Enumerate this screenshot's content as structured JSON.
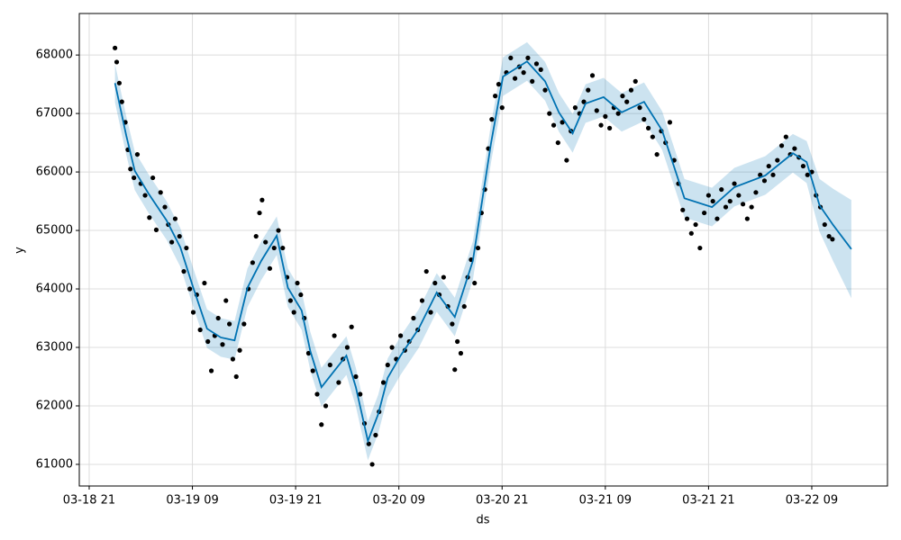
{
  "chart_data": {
    "type": "line",
    "x_label": "ds",
    "y_label": "y",
    "xlim": [
      -1.15,
      92.8
    ],
    "ylim": [
      60630,
      68710
    ],
    "grid": true,
    "xticks": [
      {
        "value": 0,
        "label": "03-18 21"
      },
      {
        "value": 12,
        "label": "03-19 09"
      },
      {
        "value": 24,
        "label": "03-19 21"
      },
      {
        "value": 36,
        "label": "03-20 09"
      },
      {
        "value": 48,
        "label": "03-20 21"
      },
      {
        "value": 60,
        "label": "03-21 09"
      },
      {
        "value": 72,
        "label": "03-21 21"
      },
      {
        "value": 84,
        "label": "03-22 09"
      }
    ],
    "yticks": [
      61000,
      62000,
      63000,
      64000,
      65000,
      66000,
      67000,
      68000
    ],
    "forecast": {
      "color": "#0072b2",
      "band_color": "#0072b2",
      "x": [
        3,
        4.3,
        5.3,
        6.9,
        9,
        10.6,
        12.1,
        13.7,
        15.3,
        16.9,
        18.4,
        20,
        21.8,
        23.1,
        24.7,
        25.7,
        27,
        29.9,
        31,
        32.4,
        33.6,
        34.7,
        36.2,
        38.3,
        40.4,
        42.5,
        44.6,
        46.7,
        48.1,
        50.9,
        53,
        54.6,
        56.2,
        57.7,
        59.8,
        61.9,
        64.5,
        66.6,
        69.2,
        72.4,
        75,
        78.6,
        81.8,
        83.4,
        84.9,
        86.5,
        88.6
      ],
      "yhat": [
        67520,
        66630,
        66020,
        65630,
        65170,
        64710,
        64020,
        63320,
        63170,
        63120,
        64020,
        64480,
        64910,
        64020,
        63630,
        62940,
        62320,
        62860,
        62320,
        61400,
        61860,
        62480,
        62860,
        63320,
        63940,
        63520,
        64480,
        66480,
        67630,
        67890,
        67550,
        67020,
        66660,
        67170,
        67280,
        67020,
        67200,
        66710,
        65550,
        65400,
        65740,
        65940,
        66320,
        66170,
        65430,
        65090,
        64680
      ],
      "lower": [
        67190,
        66300,
        65690,
        65300,
        64840,
        64380,
        63690,
        62990,
        62840,
        62790,
        63690,
        64150,
        64580,
        63690,
        63300,
        62610,
        61990,
        62530,
        61990,
        61070,
        61530,
        62150,
        62530,
        62990,
        63610,
        63190,
        64150,
        66150,
        67300,
        67560,
        67220,
        66690,
        66330,
        66840,
        66950,
        66690,
        66870,
        66380,
        65220,
        65070,
        65410,
        65610,
        65990,
        65810,
        64980,
        64470,
        63840
      ],
      "upper": [
        67850,
        66960,
        66350,
        65960,
        65500,
        65040,
        64350,
        63650,
        63500,
        63450,
        64350,
        64810,
        65240,
        64350,
        63960,
        63270,
        62650,
        63190,
        62650,
        61730,
        62190,
        62810,
        63190,
        63650,
        64270,
        63850,
        64810,
        66810,
        67960,
        68220,
        67880,
        67350,
        66990,
        67500,
        67610,
        67350,
        67530,
        67040,
        65880,
        65730,
        66070,
        66270,
        66650,
        66530,
        65880,
        65710,
        65520
      ]
    },
    "observed": {
      "color": "#000000",
      "x": [
        3,
        3.2,
        3.5,
        3.8,
        4.2,
        4.5,
        4.8,
        5.2,
        5.6,
        6,
        6.5,
        7,
        7.4,
        7.8,
        8.3,
        8.8,
        9.2,
        9.6,
        10,
        10.5,
        11,
        11.3,
        11.7,
        12.1,
        12.5,
        12.9,
        13.4,
        13.8,
        14.2,
        14.6,
        15,
        15.5,
        15.9,
        16.3,
        16.7,
        17.1,
        17.5,
        18,
        18.5,
        19,
        19.4,
        19.8,
        20.1,
        20.5,
        21,
        21.5,
        22,
        22.5,
        23,
        23.4,
        23.8,
        24.2,
        24.6,
        25,
        25.5,
        26,
        26.5,
        27,
        27.5,
        28,
        28.5,
        29,
        29.5,
        30,
        30.5,
        31,
        31.5,
        32,
        32.5,
        32.9,
        33.3,
        33.7,
        34.2,
        34.7,
        35.2,
        35.7,
        36.2,
        36.7,
        37.2,
        37.7,
        38.2,
        38.7,
        39.2,
        39.7,
        40.2,
        40.7,
        41.2,
        41.7,
        42.2,
        42.5,
        42.8,
        43.2,
        43.6,
        44,
        44.4,
        44.8,
        45.2,
        45.6,
        46,
        46.4,
        46.8,
        47.2,
        47.6,
        48,
        48.5,
        49,
        49.5,
        50,
        50.5,
        51,
        51.5,
        52,
        52.5,
        53,
        53.5,
        54,
        54.5,
        55,
        55.5,
        56,
        56.5,
        57,
        57.5,
        58,
        58.5,
        59,
        59.5,
        60,
        60.5,
        61,
        61.5,
        62,
        62.5,
        63,
        63.5,
        64,
        64.5,
        65,
        65.5,
        66,
        66.5,
        67,
        67.5,
        68,
        68.5,
        69,
        69.5,
        70,
        70.5,
        71,
        71.5,
        72,
        72.5,
        73,
        73.5,
        74,
        74.5,
        75,
        75.5,
        76,
        76.5,
        77,
        77.5,
        78,
        78.5,
        79,
        79.5,
        80,
        80.5,
        81,
        81.5,
        82,
        82.5,
        83,
        83.5,
        84,
        84.5,
        85,
        85.5,
        86,
        86.4
      ],
      "y": [
        68120,
        67880,
        67520,
        67200,
        66850,
        66380,
        66050,
        65900,
        66300,
        65800,
        65600,
        65220,
        65900,
        65010,
        65650,
        65400,
        65100,
        64800,
        65200,
        64900,
        64300,
        64700,
        64000,
        63600,
        63900,
        63300,
        64100,
        63100,
        62600,
        63200,
        63500,
        63050,
        63800,
        63400,
        62800,
        62500,
        62950,
        63400,
        64000,
        64450,
        64900,
        65300,
        65520,
        64800,
        64350,
        64700,
        65000,
        64700,
        64200,
        63800,
        63600,
        64100,
        63900,
        63500,
        62900,
        62600,
        62200,
        61680,
        62000,
        62700,
        63200,
        62400,
        62800,
        63000,
        63350,
        62500,
        62200,
        61700,
        61350,
        61000,
        61500,
        61900,
        62400,
        62700,
        63000,
        62800,
        63200,
        62950,
        63100,
        63500,
        63300,
        63800,
        64300,
        63600,
        64100,
        63900,
        64200,
        63700,
        63400,
        62620,
        63100,
        62900,
        63700,
        64200,
        64500,
        64100,
        64700,
        65300,
        65700,
        66400,
        66900,
        67300,
        67500,
        67100,
        67700,
        67950,
        67600,
        67800,
        67700,
        67950,
        67550,
        67850,
        67750,
        67400,
        67000,
        66800,
        66500,
        66850,
        66200,
        66700,
        67100,
        67000,
        67200,
        67400,
        67650,
        67050,
        66800,
        66950,
        66750,
        67100,
        67000,
        67300,
        67200,
        67400,
        67550,
        67100,
        66900,
        66750,
        66600,
        66300,
        66700,
        66500,
        66850,
        66200,
        65800,
        65350,
        65200,
        64950,
        65100,
        64700,
        65300,
        65600,
        65500,
        65200,
        65700,
        65400,
        65500,
        65800,
        65600,
        65450,
        65200,
        65400,
        65650,
        65950,
        65850,
        66100,
        65950,
        66200,
        66450,
        66600,
        66300,
        66400,
        66250,
        66100,
        65950,
        66000,
        65600,
        65400,
        65100,
        64900,
        64850
      ]
    }
  }
}
